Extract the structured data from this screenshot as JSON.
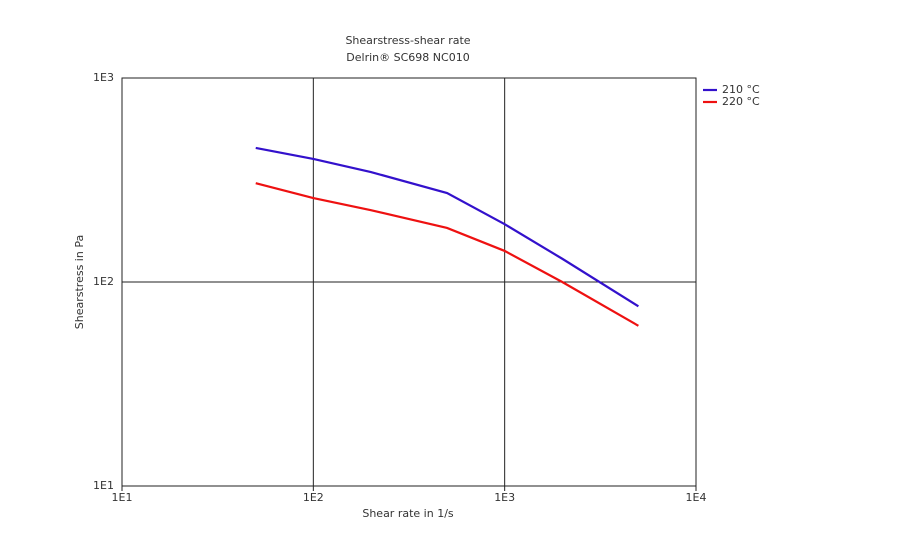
{
  "chart_data": {
    "type": "line",
    "title": "Shearstress-shear rate",
    "subtitle": "Delrin® SC698 NC010",
    "x_label": "Shear rate in 1/s",
    "y_label": "Shearstress in Pa",
    "x": [
      50,
      100,
      200,
      500,
      1000,
      2000,
      5000
    ],
    "series": [
      {
        "name": "210 °C",
        "color": "#3311cc",
        "values": [
          454,
          401,
          346,
          273,
          192,
          130,
          76
        ]
      },
      {
        "name": "220 °C",
        "color": "#ee1111",
        "values": [
          305,
          258,
          225,
          184,
          142,
          100,
          61
        ]
      }
    ],
    "xlim": [
      10,
      10000
    ],
    "ylim": [
      10,
      1000
    ],
    "xticks": [
      {
        "value": 10,
        "label": "1E1"
      },
      {
        "value": 100,
        "label": "1E2"
      },
      {
        "value": 1000,
        "label": "1E3"
      },
      {
        "value": 10000,
        "label": "1E4"
      }
    ],
    "yticks": [
      {
        "value": 10,
        "label": "1E1"
      },
      {
        "value": 100,
        "label": "1E2"
      },
      {
        "value": 1000,
        "label": "1E3"
      }
    ],
    "xscale": "log",
    "yscale": "log",
    "grid": true,
    "legend": "right"
  }
}
